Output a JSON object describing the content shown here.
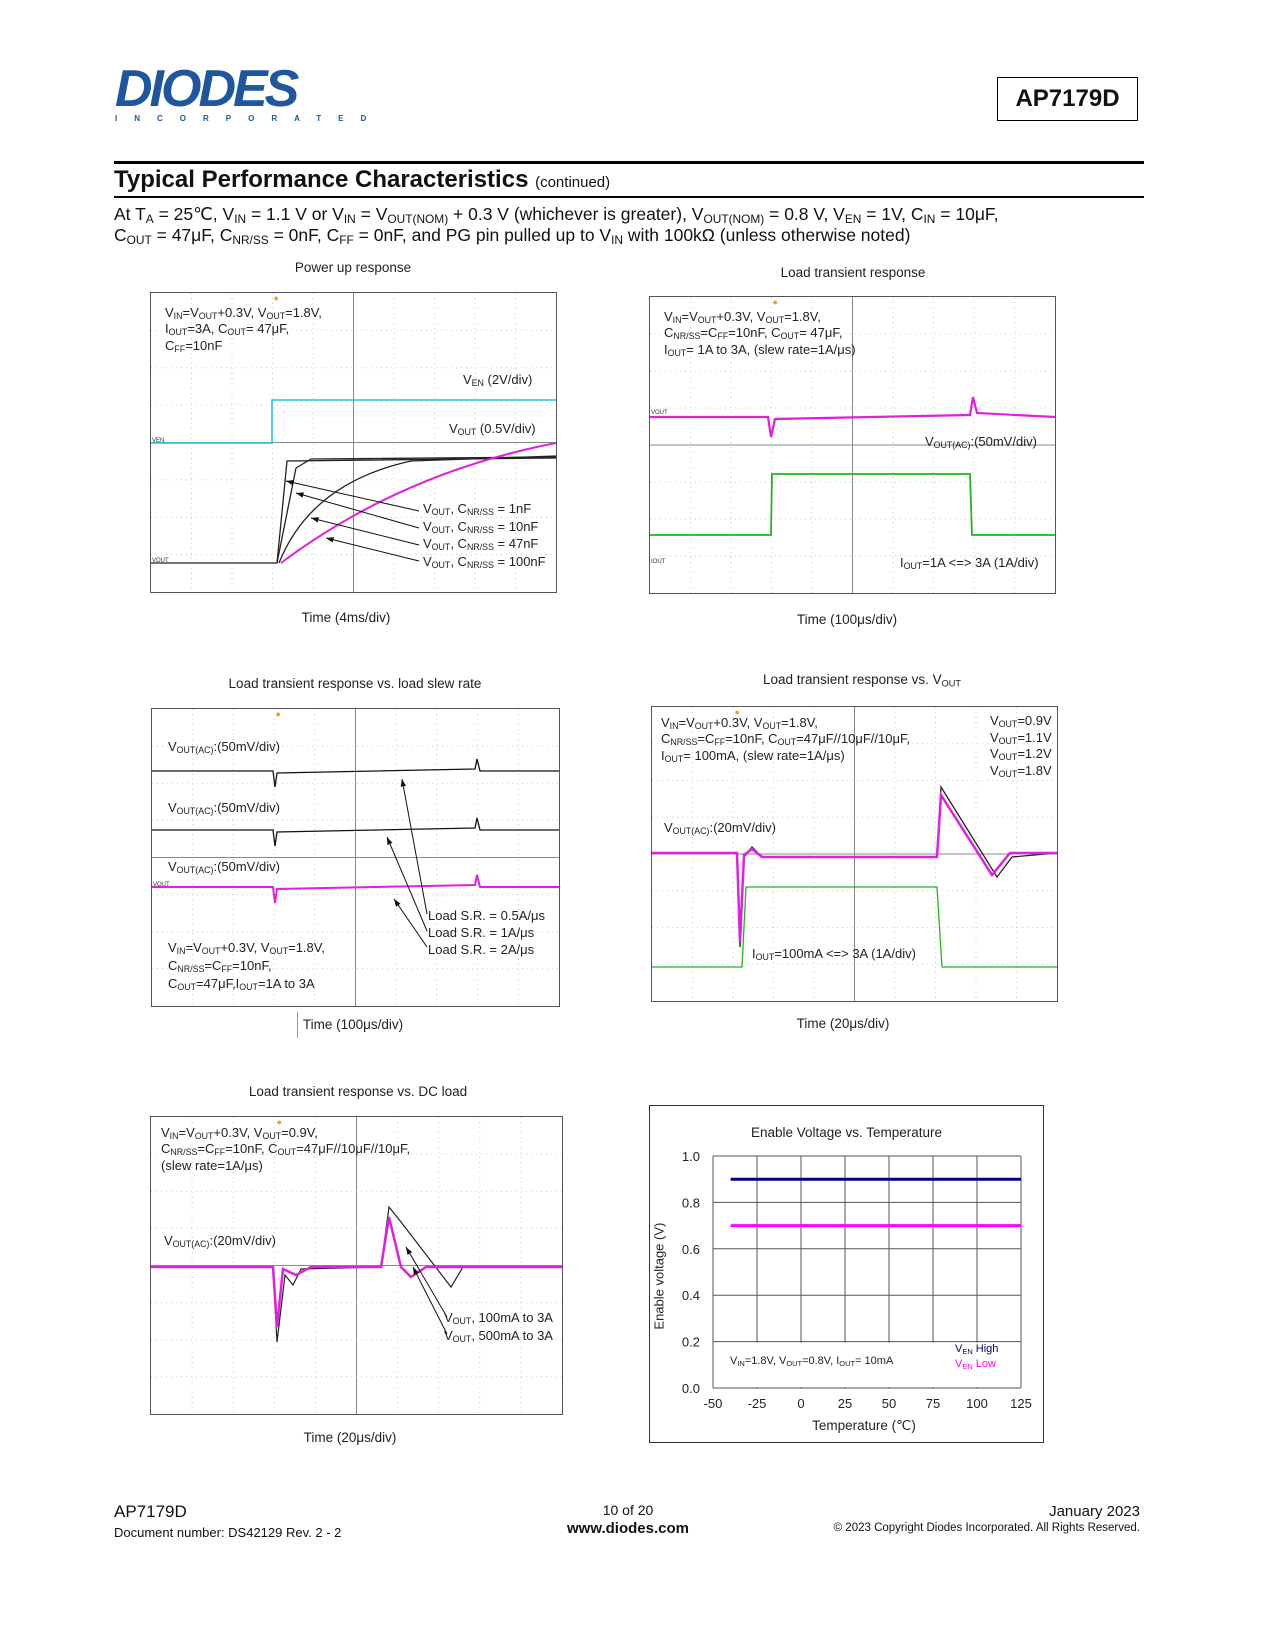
{
  "header": {
    "logo_text": "DIODES",
    "logo_subtext": "INCORPORATED",
    "part_number": "AP7179D"
  },
  "section": {
    "title": "Typical Performance Characteristics",
    "continued": "(continued)",
    "conditions_line1": "At T{A} = 25℃, V{IN} = 1.1 V or V{IN} = V{OUT(NOM)} + 0.3 V (whichever is greater), V{OUT(NOM)} = 0.8 V, V{EN} = 1V, C{IN} = 10μF,",
    "conditions_line2": "C{OUT} = 47μF, C{NR/SS} = 0nF, C{FF} = 0nF, and PG pin pulled up to V{IN} with 100kΩ (unless otherwise noted)"
  },
  "plots": {
    "power_up": {
      "title": "Power up response",
      "time": "Time (4ms/div)",
      "cond": [
        "V{IN}=V{OUT}+0.3V, V{OUT}=1.8V,",
        "I{OUT}=3A, C{OUT}= 47μF,",
        "C{FF}=10nF"
      ],
      "ven": "V{EN} (2V/div)",
      "vout": "V{OUT} (0.5V/div)",
      "curves": [
        "V{OUT}, C{NR/SS} = 1nF",
        "V{OUT}, C{NR/SS} = 10nF",
        "V{OUT}, C{NR/SS} = 47nF",
        "V{OUT}, C{NR/SS} = 100nF"
      ],
      "ch_ven": "VEN",
      "ch_vout": "VOUT",
      "colors": {
        "ven": "#1ec8d8",
        "vout": "#111111",
        "vout_100nF": "#e020e0"
      }
    },
    "load_transient": {
      "title": "Load transient response",
      "time": "Time (100μs/div)",
      "cond": [
        "V{IN}=V{OUT}+0.3V, V{OUT}=1.8V,",
        "C{NR/SS}=C{FF}=10nF, C{OUT}= 47μF,",
        "I{OUT}= 1A to 3A, (slew rate=1A/μs)"
      ],
      "vout": "V{OUT(AC)}:(50mV/div)",
      "iout": "I{OUT}=1A <=> 3A (1A/div)",
      "ch_vout": "VOUT",
      "ch_iout": "IOUT",
      "colors": {
        "vout": "#e020e0",
        "iout": "#22b422"
      }
    },
    "slew_rate": {
      "title": "Load transient response vs. load slew rate",
      "time": "Time (100μs/div)",
      "vout_labels": [
        "V{OUT(AC)}:(50mV/div)",
        "V{OUT(AC)}:(50mV/div)",
        "V{OUT(AC)}:(50mV/div)"
      ],
      "rates": [
        "Load S.R. = 0.5A/μs",
        "Load S.R. = 1A/μs",
        "Load S.R. = 2A/μs"
      ],
      "cond": [
        "V{IN}=V{OUT}+0.3V, V{OUT}=1.8V,",
        "C{NR/SS}=C{FF}=10nF,",
        "C{OUT}=47μF,I{OUT}=1A to 3A"
      ],
      "ch_vout": "VOUT"
    },
    "vs_vout": {
      "title": "Load transient response vs. V{OUT}",
      "time": "Time (20μs/div)",
      "cond": [
        "V{IN}=V{OUT}+0.3V, V{OUT}=1.8V,",
        "C{NR/SS}=C{FF}=10nF, C{OUT}=47μF//10μF//10μF,",
        "I{OUT}= 100mA, (slew rate=1A/μs)"
      ],
      "legend": [
        "V{OUT}=0.9V",
        "V{OUT}=1.1V",
        "V{OUT}=1.2V",
        "V{OUT}=1.8V"
      ],
      "vout": "V{OUT(AC)}:(20mV/div)",
      "iout": "I{OUT}=100mA <=> 3A (1A/div)"
    },
    "vs_dc_load": {
      "title": "Load transient response vs. DC load",
      "time": "Time (20μs/div)",
      "cond": [
        "V{IN}=V{OUT}+0.3V, V{OUT}=0.9V,",
        "C{NR/SS}=C{FF}=10nF, C{OUT}=47μF//10μF//10μF,",
        "(slew rate=1A/μs)"
      ],
      "vout": "V{OUT(AC)}:(20mV/div)",
      "curves": [
        "V{OUT}, 100mA to 3A",
        "V{OUT}, 500mA to 3A"
      ]
    }
  },
  "chart_data": {
    "type": "line",
    "title": "Enable Voltage vs. Temperature",
    "xlabel": "Temperature (℃)",
    "ylabel": "Enable voltage (V)",
    "xlim": [
      -50,
      125
    ],
    "ylim": [
      0,
      1.0
    ],
    "xticks": [
      "-50",
      "-25",
      "0",
      "25",
      "50",
      "75",
      "100",
      "125"
    ],
    "yticks": [
      "0.0",
      "0.2",
      "0.4",
      "0.6",
      "0.8",
      "1.0"
    ],
    "grid": true,
    "legend_placement": "bottom-right",
    "annotation": "V{IN}=1.8V, V{OUT}=0.8V, I{OUT}= 10mA",
    "series": [
      {
        "name": "V{EN} High",
        "color": "#000080",
        "x": [
          -40,
          125
        ],
        "y": [
          0.9,
          0.9
        ]
      },
      {
        "name": "V{EN} Low",
        "color": "#ff00ff",
        "x": [
          -40,
          125
        ],
        "y": [
          0.7,
          0.7
        ]
      }
    ]
  },
  "footer": {
    "part": "AP7179D",
    "doc_number": "Document number: DS42129 Rev. 2 - 2",
    "page": "10 of 20",
    "website": "www.diodes.com",
    "date": "January 2023",
    "copyright": "© 2023 Copyright Diodes Incorporated. All Rights Reserved."
  }
}
